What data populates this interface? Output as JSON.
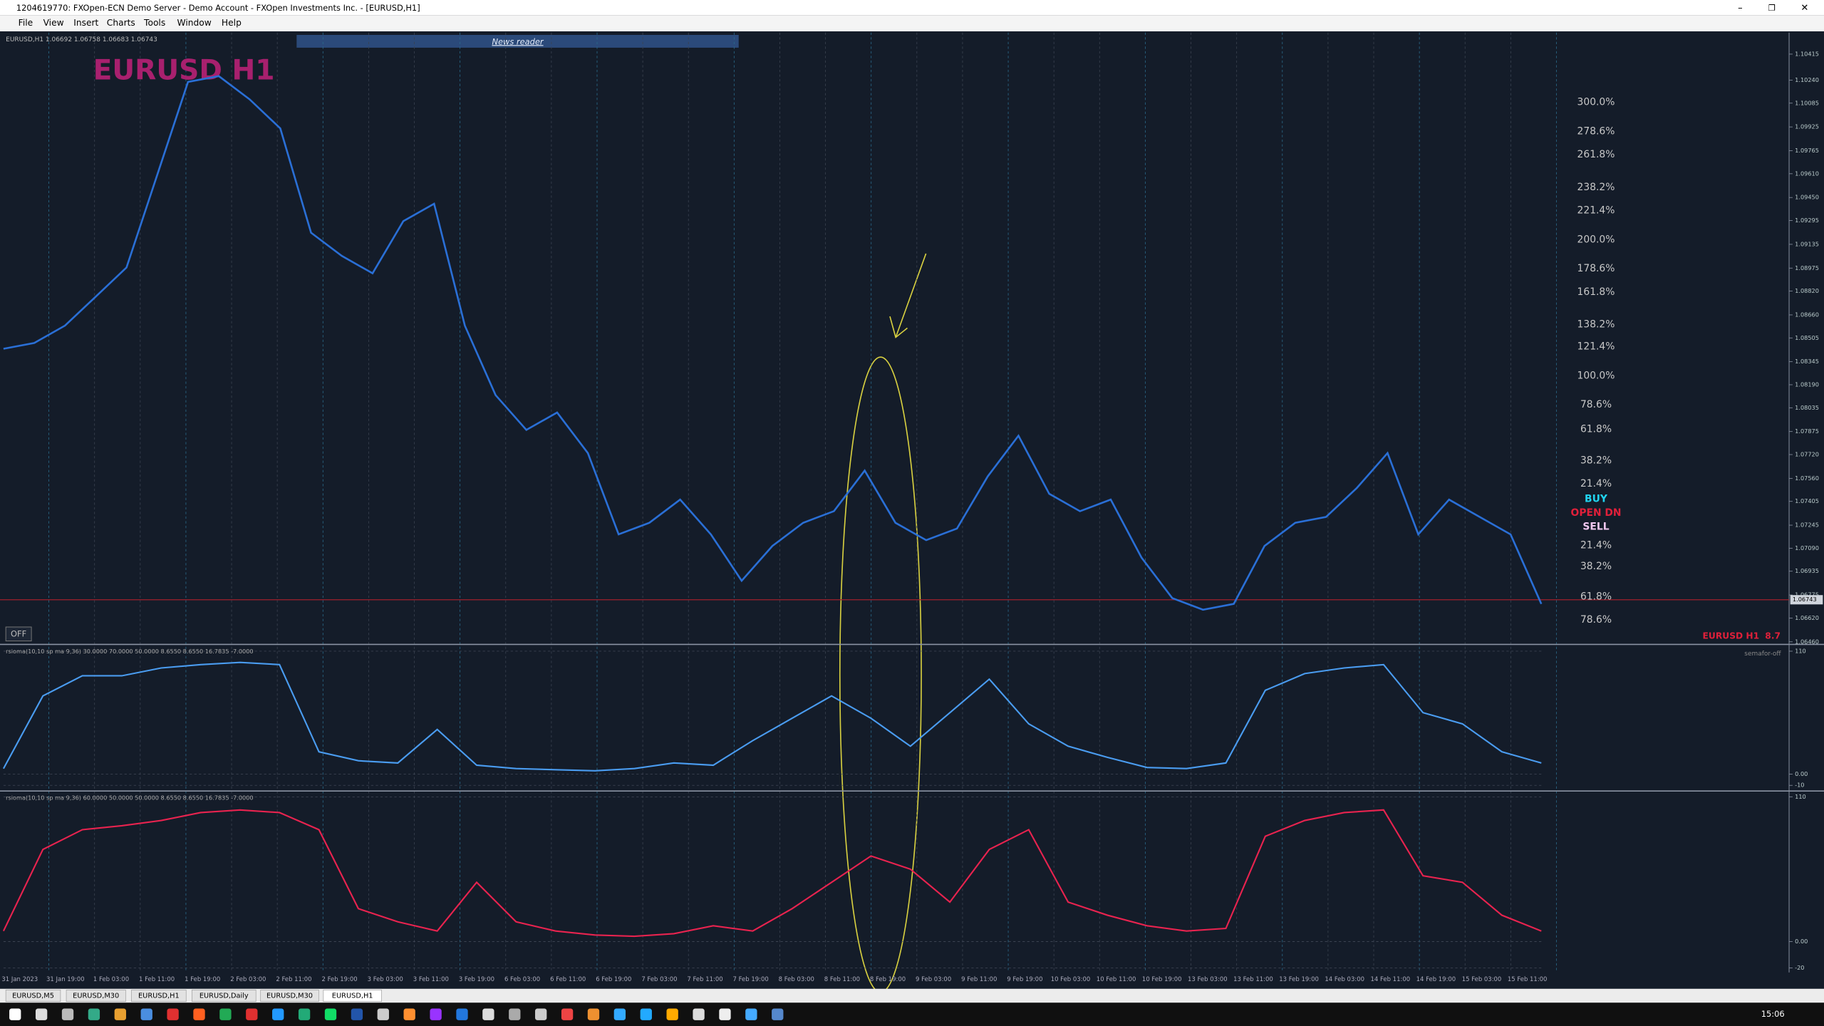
{
  "window": {
    "title": "1204619770: FXOpen-ECN Demo Server - Demo Account - FXOpen Investments Inc. - [EURUSD,H1]",
    "menu": [
      "File",
      "View",
      "Insert",
      "Charts",
      "Tools",
      "Window",
      "Help"
    ],
    "news_reader": "News reader",
    "off_button": "OFF",
    "semafor": "semafor-off",
    "fib_levels": [
      "300.0%",
      "278.6%",
      "261.8%",
      "238.2%",
      "221.4%",
      "200.0%",
      "178.6%",
      "161.8%",
      "138.2%",
      "121.4%",
      "100.0%",
      "78.6%",
      "61.8%",
      "38.2%",
      "21.4%",
      "BUY",
      "OPEN DN",
      "SELL",
      "21.4%",
      "38.2%",
      "61.8%",
      "78.6%"
    ],
    "corner_label": "EURUSD H1",
    "corner_value": "8.7",
    "time_labels": [
      "31 Jan 2023",
      "31 Jan 19:00",
      "1 Feb 03:00",
      "1 Feb 11:00",
      "1 Feb 19:00",
      "2 Feb 03:00",
      "2 Feb 11:00",
      "2 Feb 19:00",
      "3 Feb 03:00",
      "3 Feb 11:00",
      "3 Feb 19:00",
      "6 Feb 03:00",
      "6 Feb 11:00",
      "6 Feb 19:00",
      "7 Feb 03:00",
      "7 Feb 11:00",
      "7 Feb 19:00",
      "8 Feb 03:00",
      "8 Feb 11:00",
      "8 Feb 19:00",
      "9 Feb 03:00",
      "9 Feb 11:00",
      "9 Feb 19:00",
      "10 Feb 03:00",
      "10 Feb 11:00",
      "10 Feb 19:00",
      "13 Feb 03:00",
      "13 Feb 11:00",
      "13 Feb 19:00",
      "14 Feb 03:00",
      "14 Feb 11:00",
      "14 Feb 19:00",
      "15 Feb 03:00",
      "15 Feb 11:00"
    ],
    "tabs": [
      "EURUSD,M5",
      "EURUSD,M30",
      "EURUSD,H1",
      "EURUSD,Daily",
      "EURUSD,M30",
      "EURUSD,H1"
    ],
    "clock": "15:06"
  },
  "chart_data": [
    {
      "type": "line",
      "title": "EURUSD H1",
      "subtitle": "EURUSD,H1  1.06692 1.06758 1.06683 1.06743",
      "color": "#2a6fd6",
      "values": [
        1.08432,
        1.08471,
        1.08588,
        1.08783,
        1.08979,
        1.09603,
        1.10228,
        1.10267,
        1.10111,
        1.09915,
        1.09213,
        1.09057,
        1.0894,
        1.09291,
        1.09408,
        1.08588,
        1.0812,
        1.07886,
        1.08003,
        1.0773,
        1.07183,
        1.07261,
        1.07417,
        1.07183,
        1.06871,
        1.07105,
        1.07261,
        1.07339,
        1.07612,
        1.07261,
        1.07144,
        1.07222,
        1.07573,
        1.07847,
        1.07456,
        1.07339,
        1.07417,
        1.07027,
        1.06754,
        1.06676,
        1.06715,
        1.07105,
        1.07261,
        1.073,
        1.07495,
        1.0773,
        1.07183,
        1.07417,
        1.073,
        1.07183,
        1.06715
      ],
      "current_price": {
        "value": 1.06743,
        "label": "1.06743"
      },
      "ylim": [
        1.0645,
        1.1056
      ],
      "yticks": [
        {
          "value": 1.10415,
          "label": "1.10415"
        },
        {
          "value": 1.1024,
          "label": "1.10240"
        },
        {
          "value": 1.10085,
          "label": "1.10085"
        },
        {
          "value": 1.09925,
          "label": "1.09925"
        },
        {
          "value": 1.09765,
          "label": "1.09765"
        },
        {
          "value": 1.0961,
          "label": "1.09610"
        },
        {
          "value": 1.0945,
          "label": "1.09450"
        },
        {
          "value": 1.09295,
          "label": "1.09295"
        },
        {
          "value": 1.09135,
          "label": "1.09135"
        },
        {
          "value": 1.08975,
          "label": "1.08975"
        },
        {
          "value": 1.0882,
          "label": "1.08820"
        },
        {
          "value": 1.0866,
          "label": "1.08660"
        },
        {
          "value": 1.08505,
          "label": "1.08505"
        },
        {
          "value": 1.08345,
          "label": "1.08345"
        },
        {
          "value": 1.0819,
          "label": "1.08190"
        },
        {
          "value": 1.08035,
          "label": "1.08035"
        },
        {
          "value": 1.07875,
          "label": "1.07875"
        },
        {
          "value": 1.0772,
          "label": "1.07720"
        },
        {
          "value": 1.0756,
          "label": "1.07560"
        },
        {
          "value": 1.07405,
          "label": "1.07405"
        },
        {
          "value": 1.07245,
          "label": "1.07245"
        },
        {
          "value": 1.0709,
          "label": "1.07090"
        },
        {
          "value": 1.06935,
          "label": "1.06935"
        },
        {
          "value": 1.06775,
          "label": "1.06775"
        },
        {
          "value": 1.0662,
          "label": "1.06620"
        },
        {
          "value": 1.0646,
          "label": "1.06460"
        }
      ]
    },
    {
      "type": "line",
      "title": "rsioma(10,10 sp ma 9,36) 30.0000 70.0000 50.0000 8.6550 8.6550 16.7835 -7.0000",
      "color": "#4a9cf0",
      "values": [
        5,
        70,
        88,
        88,
        95,
        98,
        100,
        98,
        20,
        12,
        10,
        40,
        8,
        5,
        4,
        3,
        5,
        10,
        8,
        30,
        50,
        70,
        50,
        25,
        55,
        85,
        45,
        25,
        15,
        6,
        5,
        10,
        75,
        90,
        95,
        98,
        55,
        45,
        20,
        10
      ],
      "ylim": [
        -13,
        115
      ],
      "yticks": [
        110,
        {
          "value": 0,
          "label": "0.00"
        },
        -10
      ]
    },
    {
      "type": "line",
      "title": "rsioma(10,10 sp ma 9,36) 60.0000 50.0000 50.0000 8.6550 8.6550 16.7835 -7.0000",
      "color": "#e8234f",
      "values": [
        8,
        70,
        85,
        88,
        92,
        98,
        100,
        98,
        85,
        25,
        15,
        8,
        45,
        15,
        8,
        5,
        4,
        6,
        12,
        8,
        25,
        45,
        65,
        55,
        30,
        70,
        85,
        30,
        20,
        12,
        8,
        10,
        80,
        92,
        98,
        100,
        50,
        45,
        20,
        8
      ],
      "ylim": [
        -23.5,
        113.5
      ],
      "yticks": [
        110,
        {
          "value": 0,
          "label": "0.00"
        },
        -20
      ]
    }
  ]
}
